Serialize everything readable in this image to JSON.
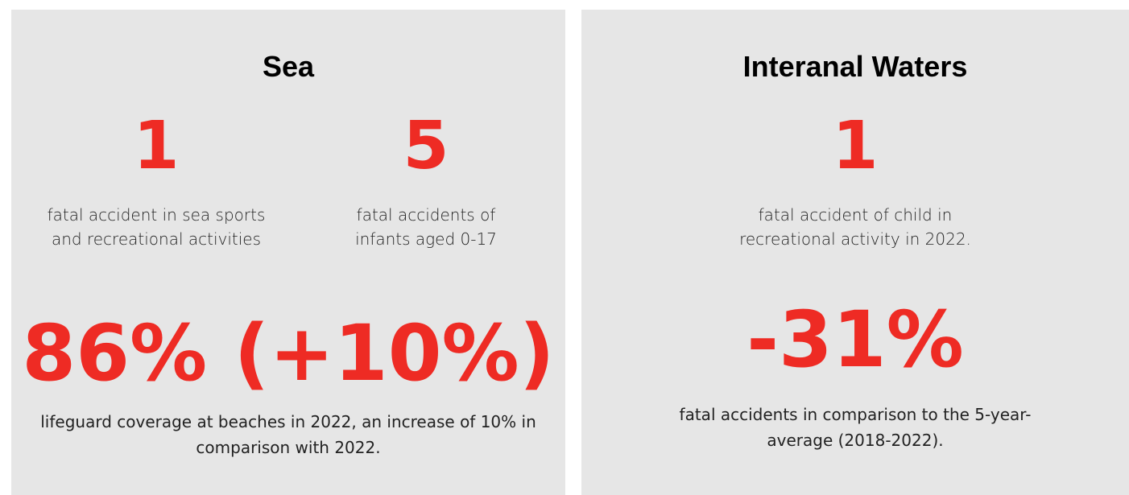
{
  "panels": [
    {
      "title": "Sea",
      "stats": [
        {
          "value": "1",
          "label": "fatal accident in sea sports and recreational activities"
        },
        {
          "value": "5",
          "label": "fatal accidents of infants aged 0-17"
        }
      ],
      "highlight": {
        "value": "86% (+10%)",
        "label": "lifeguard coverage at beaches in 2022, an increase of 10% in comparison with 2022."
      }
    },
    {
      "title": "Interanal Waters",
      "stats": [
        {
          "value": "1",
          "label": "fatal accident of child in recreational activity in 2022."
        }
      ],
      "highlight": {
        "value": "-31%",
        "label": "fatal accidents in comparison to the 5-year-average (2018-2022)."
      }
    }
  ]
}
